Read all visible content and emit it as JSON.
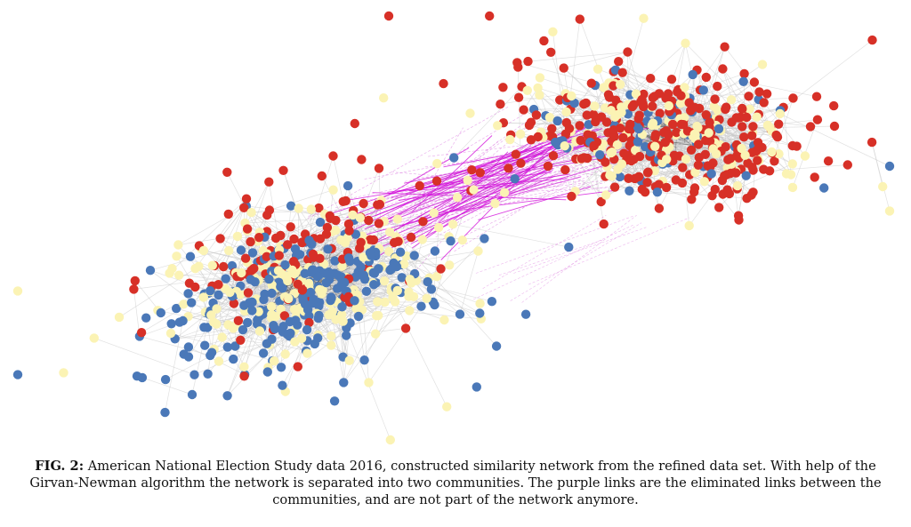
{
  "figure": {
    "label": "FIG. 2:",
    "caption": "American National Election Study data 2016, constructed similarity network from the refined data set. With help of the Girvan-Newman algorithm the network is separated into two communities. The purple links are the eliminated links between the communities, and are not part of the network anymore."
  },
  "colors": {
    "node_blue": "#4a78b8",
    "node_red": "#d73027",
    "node_yellow": "#fbf3b4",
    "edge_gray": "#c9c9c9",
    "edge_dark": "#222222",
    "edge_purple": "#d45fd8",
    "edge_magenta": "#d000d8"
  }
}
